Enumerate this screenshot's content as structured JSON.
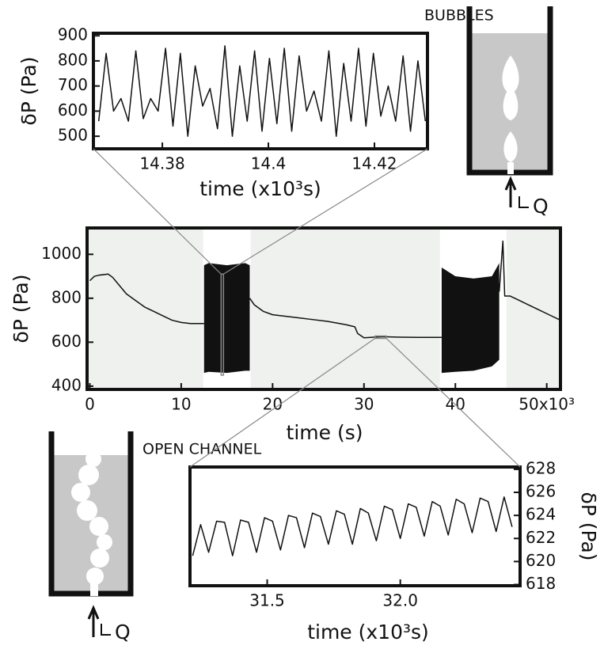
{
  "chart_data": [
    {
      "type": "line",
      "x_label": "time (x10³s)",
      "y_label": "δP (Pa)",
      "xlim": [
        14.367,
        14.43
      ],
      "ylim": [
        450,
        910
      ],
      "xticks": [
        14.38,
        14.4,
        14.42
      ],
      "yticks": [
        500,
        600,
        700,
        800,
        900
      ],
      "color": "#111111",
      "x": [
        14.368,
        14.3694,
        14.3708,
        14.3722,
        14.3736,
        14.375,
        14.3764,
        14.3778,
        14.3792,
        14.3806,
        14.382,
        14.3834,
        14.3848,
        14.3862,
        14.3876,
        14.389,
        14.3904,
        14.3918,
        14.3932,
        14.3946,
        14.396,
        14.3974,
        14.3988,
        14.4002,
        14.4016,
        14.403,
        14.4044,
        14.4058,
        14.4072,
        14.4086,
        14.41,
        14.4114,
        14.4128,
        14.4142,
        14.4156,
        14.417,
        14.4184,
        14.4198,
        14.4212,
        14.4226,
        14.424,
        14.4254,
        14.4268,
        14.4282,
        14.4296
      ],
      "values": [
        560,
        830,
        600,
        650,
        560,
        840,
        570,
        650,
        600,
        850,
        540,
        830,
        500,
        780,
        620,
        690,
        530,
        860,
        500,
        780,
        560,
        840,
        520,
        810,
        550,
        850,
        520,
        820,
        600,
        680,
        560,
        840,
        500,
        790,
        560,
        850,
        540,
        830,
        580,
        700,
        560,
        820,
        520,
        800,
        560
      ]
    },
    {
      "type": "line",
      "x_label": "time (s)",
      "y_label": "δP (Pa)",
      "xlim": [
        -0.3,
        51.5
      ],
      "ylim": [
        385,
        1120
      ],
      "xticks": [
        0,
        10,
        20,
        30,
        40,
        {
          "value": 50,
          "label": "50x10³"
        }
      ],
      "yticks": [
        400,
        600,
        800,
        1000
      ],
      "color": "#111111",
      "span_color": "#eef1ee",
      "background_spans": [
        [
          -0.3,
          12.4
        ],
        [
          17.6,
          38.3
        ],
        [
          45.6,
          51.5
        ]
      ],
      "x": [
        0,
        0.5,
        1,
        2,
        2.5,
        3,
        4,
        5,
        6,
        7,
        8,
        9,
        10,
        11,
        12.5,
        13,
        17.5,
        18,
        19,
        20,
        22,
        24,
        26,
        28,
        29,
        29.3,
        30,
        32,
        34,
        36,
        38.5,
        39,
        44.8,
        45.2,
        45.4,
        46,
        47,
        48,
        49,
        50,
        51.5
      ],
      "values": [
        880,
        900,
        905,
        910,
        895,
        870,
        820,
        790,
        760,
        740,
        720,
        700,
        690,
        685,
        685,
        null,
        800,
        770,
        740,
        725,
        715,
        705,
        695,
        680,
        670,
        640,
        620,
        625,
        623,
        622,
        622,
        null,
        830,
        1060,
        810,
        810,
        790,
        770,
        750,
        730,
        700
      ],
      "bands": [
        {
          "x": [
            12.5,
            13,
            15,
            17,
            17.5
          ],
          "lower": [
            460,
            465,
            460,
            470,
            470
          ],
          "upper": [
            950,
            960,
            950,
            960,
            950
          ]
        },
        {
          "x": [
            38.5,
            40,
            42,
            44,
            44.8
          ],
          "lower": [
            460,
            465,
            470,
            490,
            520
          ],
          "upper": [
            940,
            900,
            890,
            900,
            960
          ]
        }
      ]
    },
    {
      "type": "line",
      "x_label": "time (x10³s)",
      "y_label": "δP (Pa)",
      "xlim": [
        31.21,
        32.45
      ],
      "ylim": [
        617.9,
        628.2
      ],
      "xticks": [
        31.5,
        {
          "value": 32.0,
          "label": "32.0"
        }
      ],
      "yticks": [
        618,
        620,
        622,
        624,
        626,
        628
      ],
      "color": "#111111",
      "x": [
        31.22,
        31.25,
        31.28,
        31.31,
        31.34,
        31.37,
        31.4,
        31.43,
        31.46,
        31.49,
        31.52,
        31.55,
        31.58,
        31.61,
        31.64,
        31.67,
        31.7,
        31.73,
        31.76,
        31.79,
        31.82,
        31.85,
        31.88,
        31.91,
        31.94,
        31.97,
        32.0,
        32.03,
        32.06,
        32.09,
        32.12,
        32.15,
        32.18,
        32.21,
        32.24,
        32.27,
        32.3,
        32.33,
        32.36,
        32.39,
        32.42
      ],
      "values": [
        620.5,
        623.2,
        620.8,
        623.5,
        623.4,
        620.5,
        623.6,
        623.4,
        620.8,
        623.8,
        623.5,
        621,
        624,
        623.8,
        621.2,
        624.2,
        623.9,
        621.5,
        624.4,
        624.1,
        621.5,
        624.6,
        624.2,
        621.8,
        624.8,
        624.5,
        622,
        625,
        624.7,
        622.2,
        625.2,
        624.8,
        622.3,
        625.4,
        625,
        622.5,
        625.5,
        625.2,
        622.6,
        625.6,
        623
      ]
    }
  ],
  "diagrams": [
    {
      "label": "BUBBLES",
      "flow_label": "Q"
    },
    {
      "label": "OPEN CHANNEL",
      "flow_label": "Q"
    }
  ]
}
